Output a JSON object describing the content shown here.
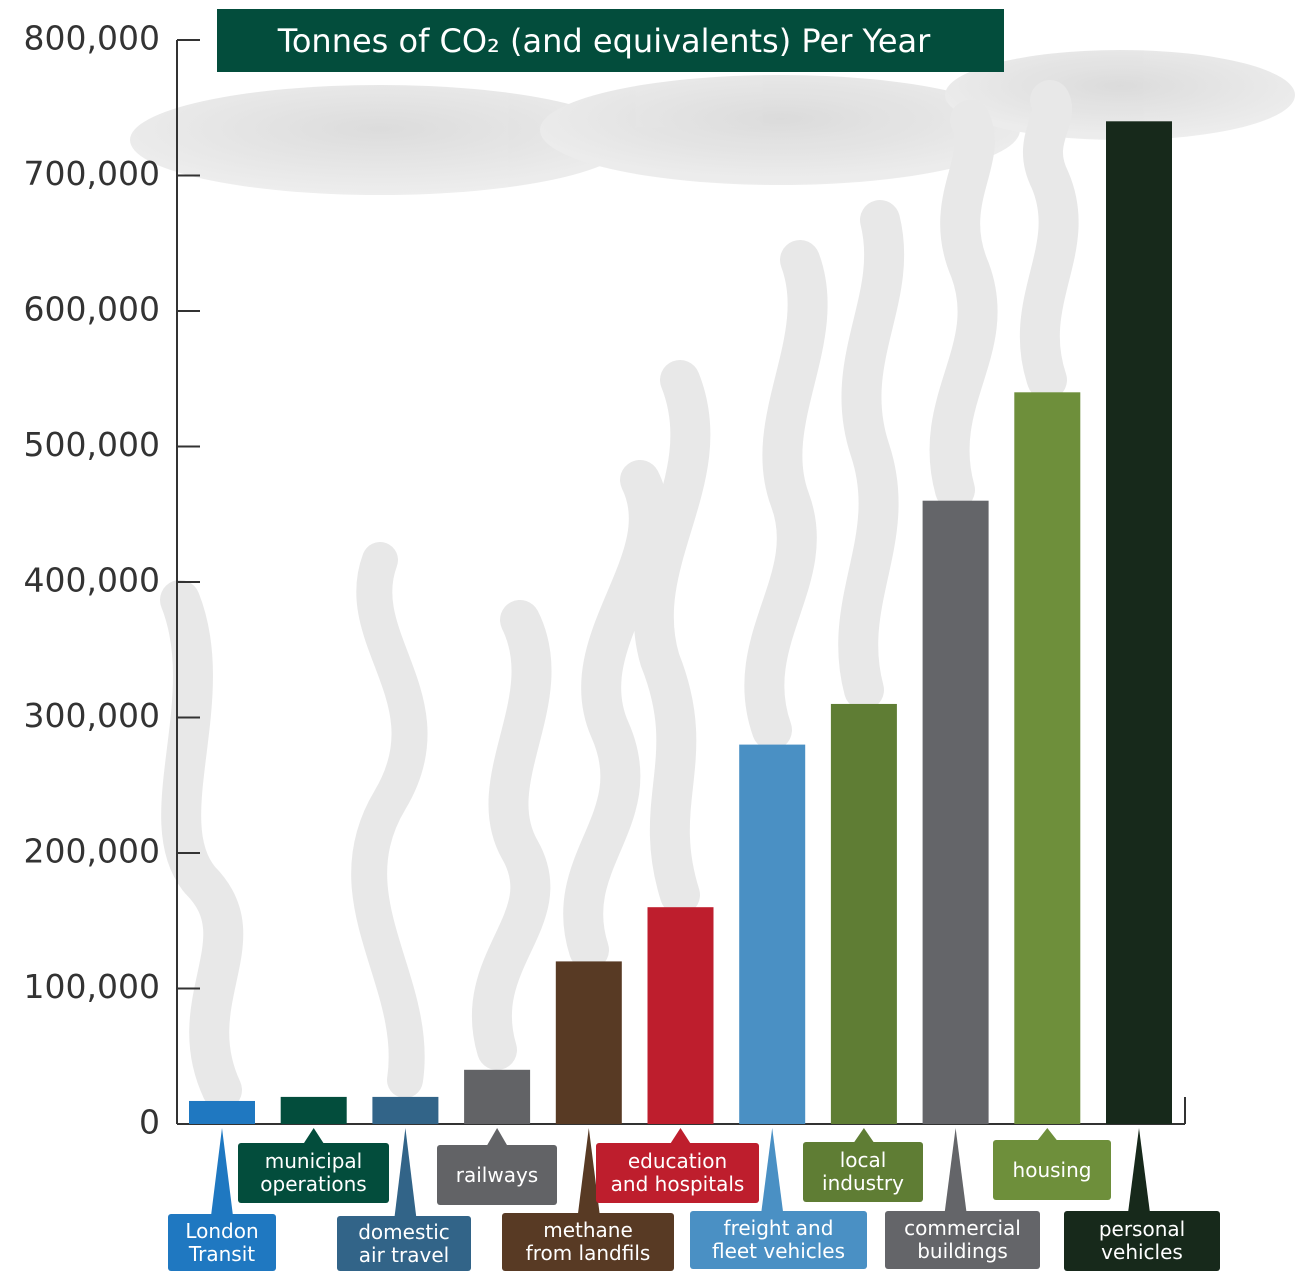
{
  "chart_data": {
    "type": "bar",
    "title": "Tonnes of CO₂ (and equivalents) Per Year",
    "categories": [
      "London\nTransit",
      "municipal\noperations",
      "domestic\nair travel",
      "railways",
      "methane\nfrom landfils",
      "education\nand hospitals",
      "freight and\nfleet vehicles",
      "local\nindustry",
      "commercial\nbuildings",
      "housing",
      "personal\nvehicles"
    ],
    "values": [
      17000,
      20000,
      20000,
      40000,
      120000,
      160000,
      280000,
      310000,
      460000,
      540000,
      740000
    ],
    "colors": [
      "#1f78c1",
      "#034d3c",
      "#326488",
      "#626366",
      "#583a24",
      "#be1e2d",
      "#4a90c4",
      "#5f7d34",
      "#646569",
      "#6e8f3b",
      "#17291b"
    ],
    "ylim": [
      0,
      800000
    ],
    "yticks": [
      0,
      {
        "value": 100000,
        "label": "100,000"
      },
      {
        "value": 200000,
        "label": "200,000"
      },
      {
        "value": 300000,
        "label": "300,000"
      },
      {
        "value": 400000,
        "label": "400,000"
      },
      {
        "value": 500000,
        "label": "500,000"
      },
      {
        "value": 600000,
        "label": "600,000"
      },
      {
        "value": 700000,
        "label": "700,000"
      },
      {
        "value": 800000,
        "label": "800,000"
      }
    ]
  }
}
